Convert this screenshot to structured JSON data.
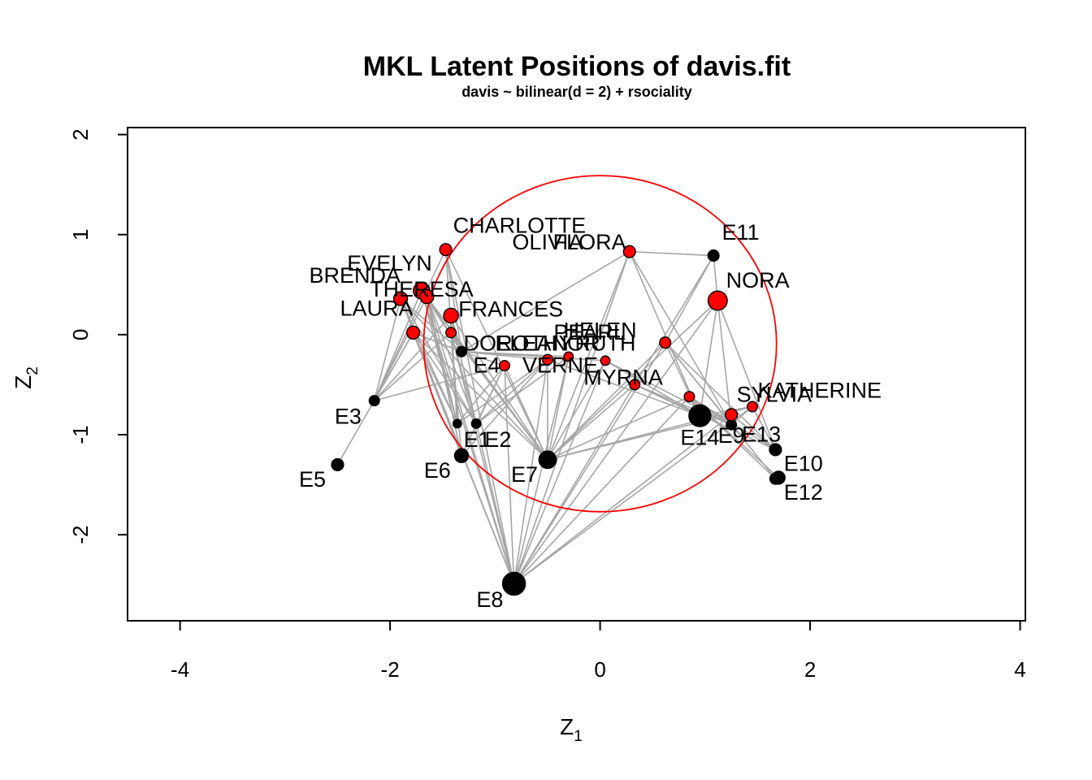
{
  "chart_data": {
    "type": "scatter",
    "title": "MKL Latent Positions of davis.fit",
    "subtitle": "davis ~ bilinear(d = 2) + rsociality",
    "xlabel": "Z",
    "xlabel_sub": "1",
    "ylabel": "Z",
    "ylabel_sub": "2",
    "xlim": [
      -4.5,
      4.05
    ],
    "ylim": [
      -2.86,
      2.07
    ],
    "xticks": [
      -4,
      -2,
      0,
      2,
      4
    ],
    "yticks": [
      -2,
      -1,
      0,
      1,
      2
    ],
    "grid": false,
    "colors": {
      "women": "#ff0000",
      "events": "#000000",
      "edges": "#a6a6a6",
      "circle": "#ff0000"
    },
    "circle": {
      "cx": 0.0,
      "cy": -0.09,
      "r": 1.68
    },
    "women": [
      {
        "name": "EVELYN",
        "x": -1.7,
        "y": 0.44,
        "size": 1.3,
        "lx": -1.6,
        "ly": 0.64,
        "anchor": "end"
      },
      {
        "name": "BRENDA",
        "x": -1.9,
        "y": 0.36,
        "size": 1.0,
        "lx": -1.9,
        "ly": 0.52,
        "anchor": "end"
      },
      {
        "name": "THERESA",
        "x": -1.65,
        "y": 0.38,
        "size": 1.0,
        "lx": -1.7,
        "ly": 0.38,
        "anchor": "middle"
      },
      {
        "name": "LAURA",
        "x": -1.78,
        "y": 0.02,
        "size": 0.9,
        "lx": -1.78,
        "ly": 0.19,
        "anchor": "end"
      },
      {
        "name": "CHARLOTTE",
        "x": -1.47,
        "y": 0.85,
        "size": 0.8,
        "lx": -1.4,
        "ly": 1.02,
        "anchor": "start"
      },
      {
        "name": "FRANCES",
        "x": -1.42,
        "y": 0.19,
        "size": 1.1,
        "lx": -1.35,
        "ly": 0.18,
        "anchor": "start"
      },
      {
        "name": "ELEANOR",
        "x": -1.42,
        "y": 0.02,
        "size": 0.6,
        "lx": -0.5,
        "ly": -0.16,
        "anchor": "middle"
      },
      {
        "name": "PEARL",
        "x": -0.5,
        "y": -0.25,
        "size": 0.6,
        "lx": -0.1,
        "ly": -0.05,
        "anchor": "middle"
      },
      {
        "name": "RUTH",
        "x": -0.3,
        "y": -0.22,
        "size": 0.5,
        "lx": 0.05,
        "ly": -0.16,
        "anchor": "middle"
      },
      {
        "name": "VERNE",
        "x": 0.05,
        "y": -0.26,
        "size": 0.5,
        "lx": -0.38,
        "ly": -0.38,
        "anchor": "middle"
      },
      {
        "name": "MYRNA",
        "x": 0.33,
        "y": -0.5,
        "size": 0.6,
        "lx": 0.22,
        "ly": -0.5,
        "anchor": "middle"
      },
      {
        "name": "KATHERINE",
        "x": 0.62,
        "y": -0.08,
        "size": 0.7,
        "lx": 1.5,
        "ly": -0.63,
        "anchor": "start"
      },
      {
        "name": "SYLVIA",
        "x": 1.25,
        "y": -0.8,
        "size": 0.8,
        "lx": 1.3,
        "ly": -0.67,
        "anchor": "start"
      },
      {
        "name": "NORA",
        "x": 1.12,
        "y": 0.34,
        "size": 1.6,
        "lx": 1.2,
        "ly": 0.47,
        "anchor": "start"
      },
      {
        "name": "HELEN",
        "x": 0.85,
        "y": -0.62,
        "size": 0.6,
        "lx": 0.0,
        "ly": -0.03,
        "anchor": "middle"
      },
      {
        "name": "DOROTHY",
        "x": -0.91,
        "y": -0.31,
        "size": 0.6,
        "lx": -1.3,
        "ly": -0.16,
        "anchor": "start"
      },
      {
        "name": "OLIVIA",
        "x": 1.45,
        "y": -0.72,
        "size": 0.6,
        "lx": -0.5,
        "ly": 0.85,
        "anchor": "middle"
      },
      {
        "name": "FLORA",
        "x": 0.28,
        "y": 0.83,
        "size": 0.8,
        "lx": -0.1,
        "ly": 0.85,
        "anchor": "middle"
      }
    ],
    "events": [
      {
        "name": "E1",
        "x": -1.36,
        "y": -0.89,
        "size": 0.4,
        "lx": -1.3,
        "ly": -1.12,
        "anchor": "start"
      },
      {
        "name": "E2",
        "x": -1.18,
        "y": -0.89,
        "size": 0.5,
        "lx": -1.1,
        "ly": -1.12,
        "anchor": "start"
      },
      {
        "name": "E3",
        "x": -2.15,
        "y": -0.66,
        "size": 0.6,
        "lx": -2.4,
        "ly": -0.89,
        "anchor": "middle"
      },
      {
        "name": "E4",
        "x": -1.32,
        "y": -0.17,
        "size": 0.6,
        "lx": -1.08,
        "ly": -0.38,
        "anchor": "middle"
      },
      {
        "name": "E5",
        "x": -2.5,
        "y": -1.3,
        "size": 0.8,
        "lx": -2.74,
        "ly": -1.52,
        "anchor": "middle"
      },
      {
        "name": "E6",
        "x": -1.32,
        "y": -1.21,
        "size": 1.0,
        "lx": -1.55,
        "ly": -1.43,
        "anchor": "middle"
      },
      {
        "name": "E7",
        "x": -0.5,
        "y": -1.25,
        "size": 1.4,
        "lx": -0.72,
        "ly": -1.47,
        "anchor": "middle"
      },
      {
        "name": "E8",
        "x": -0.82,
        "y": -2.49,
        "size": 2.0,
        "lx": -1.05,
        "ly": -2.72,
        "anchor": "middle"
      },
      {
        "name": "E9",
        "x": 1.25,
        "y": -0.9,
        "size": 0.6,
        "lx": 1.25,
        "ly": -1.08,
        "anchor": "middle"
      },
      {
        "name": "E10",
        "x": 1.7,
        "y": -1.43,
        "size": 0.9,
        "lx": 1.75,
        "ly": -1.36,
        "anchor": "start"
      },
      {
        "name": "E11",
        "x": 1.08,
        "y": 0.79,
        "size": 0.7,
        "lx": 1.16,
        "ly": 0.95,
        "anchor": "start"
      },
      {
        "name": "E12",
        "x": 1.67,
        "y": -1.44,
        "size": 0.7,
        "lx": 1.75,
        "ly": -1.65,
        "anchor": "start"
      },
      {
        "name": "E13",
        "x": 1.67,
        "y": -1.15,
        "size": 0.8,
        "lx": 1.35,
        "ly": -1.07,
        "anchor": "start"
      },
      {
        "name": "E14",
        "x": 0.95,
        "y": -0.81,
        "size": 1.9,
        "lx": 0.95,
        "ly": -1.1,
        "anchor": "middle"
      }
    ]
  }
}
